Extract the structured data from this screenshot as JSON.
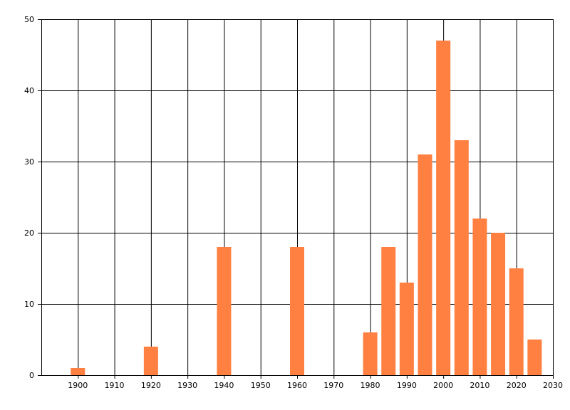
{
  "chart_data": {
    "type": "bar",
    "title": "",
    "xlabel": "",
    "ylabel": "",
    "x": [
      1900,
      1920,
      1940,
      1960,
      1980,
      1985,
      1990,
      1995,
      2000,
      2005,
      2010,
      2015,
      2020,
      2025
    ],
    "values": [
      1,
      4,
      18,
      18,
      6,
      18,
      13,
      31,
      47,
      33,
      22,
      20,
      15,
      5
    ],
    "xlim": [
      1890,
      2030
    ],
    "ylim": [
      0,
      50
    ],
    "x_ticks": [
      "1900",
      "1910",
      "1920",
      "1930",
      "1940",
      "1950",
      "1960",
      "1970",
      "1980",
      "1990",
      "2000",
      "2010",
      "2020",
      "2030"
    ],
    "y_ticks": [
      "0",
      "10",
      "20",
      "30",
      "40",
      "50"
    ],
    "grid": true,
    "legend": "none",
    "bar_color": "#ff8040",
    "grid_color": "#000000"
  }
}
